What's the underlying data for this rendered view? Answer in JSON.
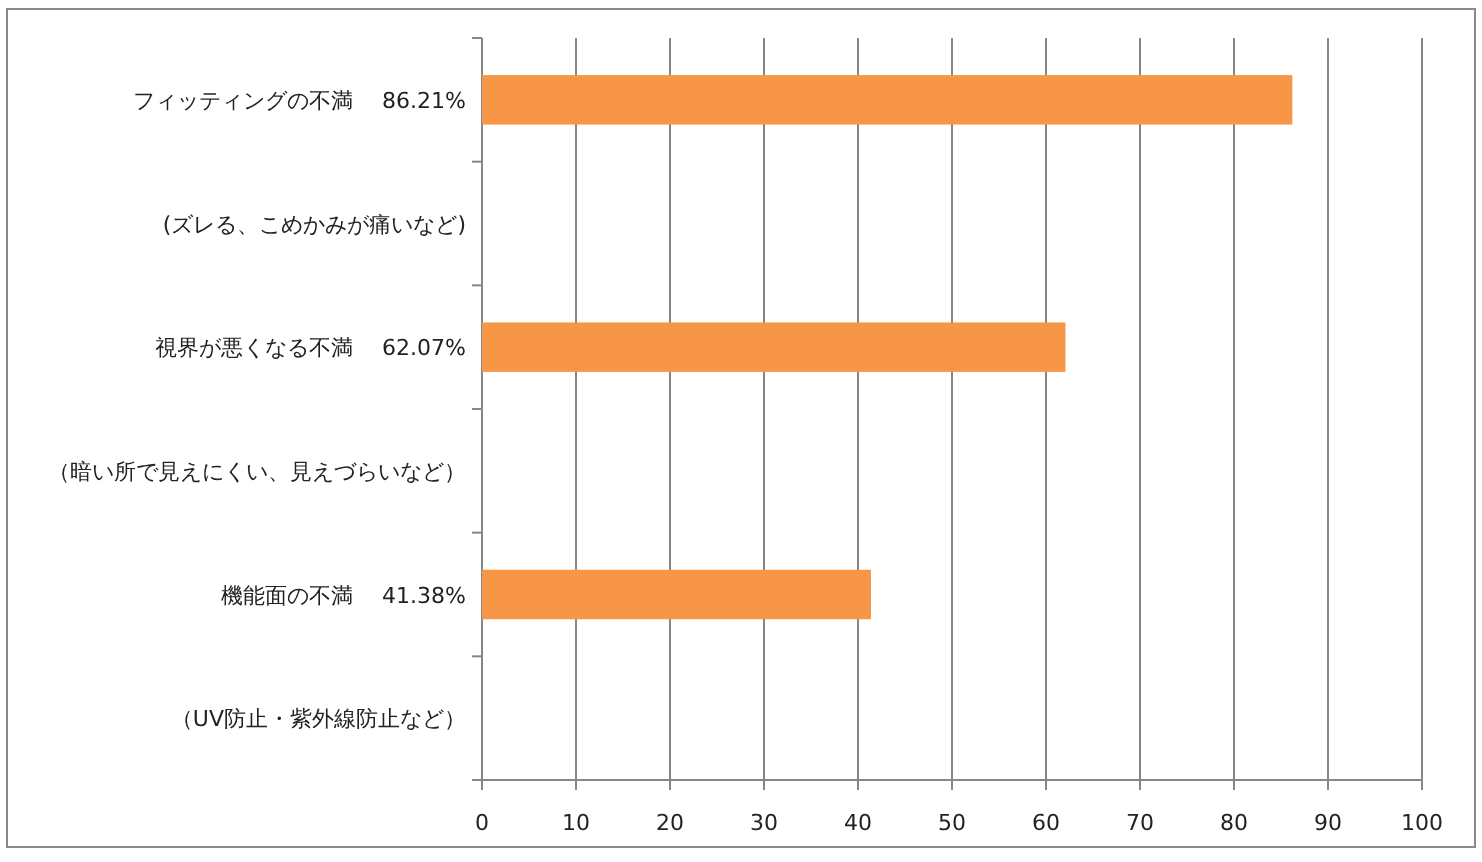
{
  "chart_data": {
    "type": "bar",
    "orientation": "horizontal",
    "categories": [
      "フィッティングの不満　 86.21%",
      "(ズレる、こめかみが痛いなど)",
      "視界が悪くなる不満　 62.07%",
      "（暗い所で見えにくい、見えづらいなど）",
      "機能面の不満　 41.38%",
      "（UV防止・紫外線防止など）"
    ],
    "values": [
      86.21,
      null,
      62.07,
      null,
      41.38,
      null
    ],
    "color": "#f79646",
    "xlim": [
      0,
      100
    ],
    "xticks": [
      0,
      10,
      20,
      30,
      40,
      50,
      60,
      70,
      80,
      90,
      100
    ],
    "grid": "x"
  }
}
